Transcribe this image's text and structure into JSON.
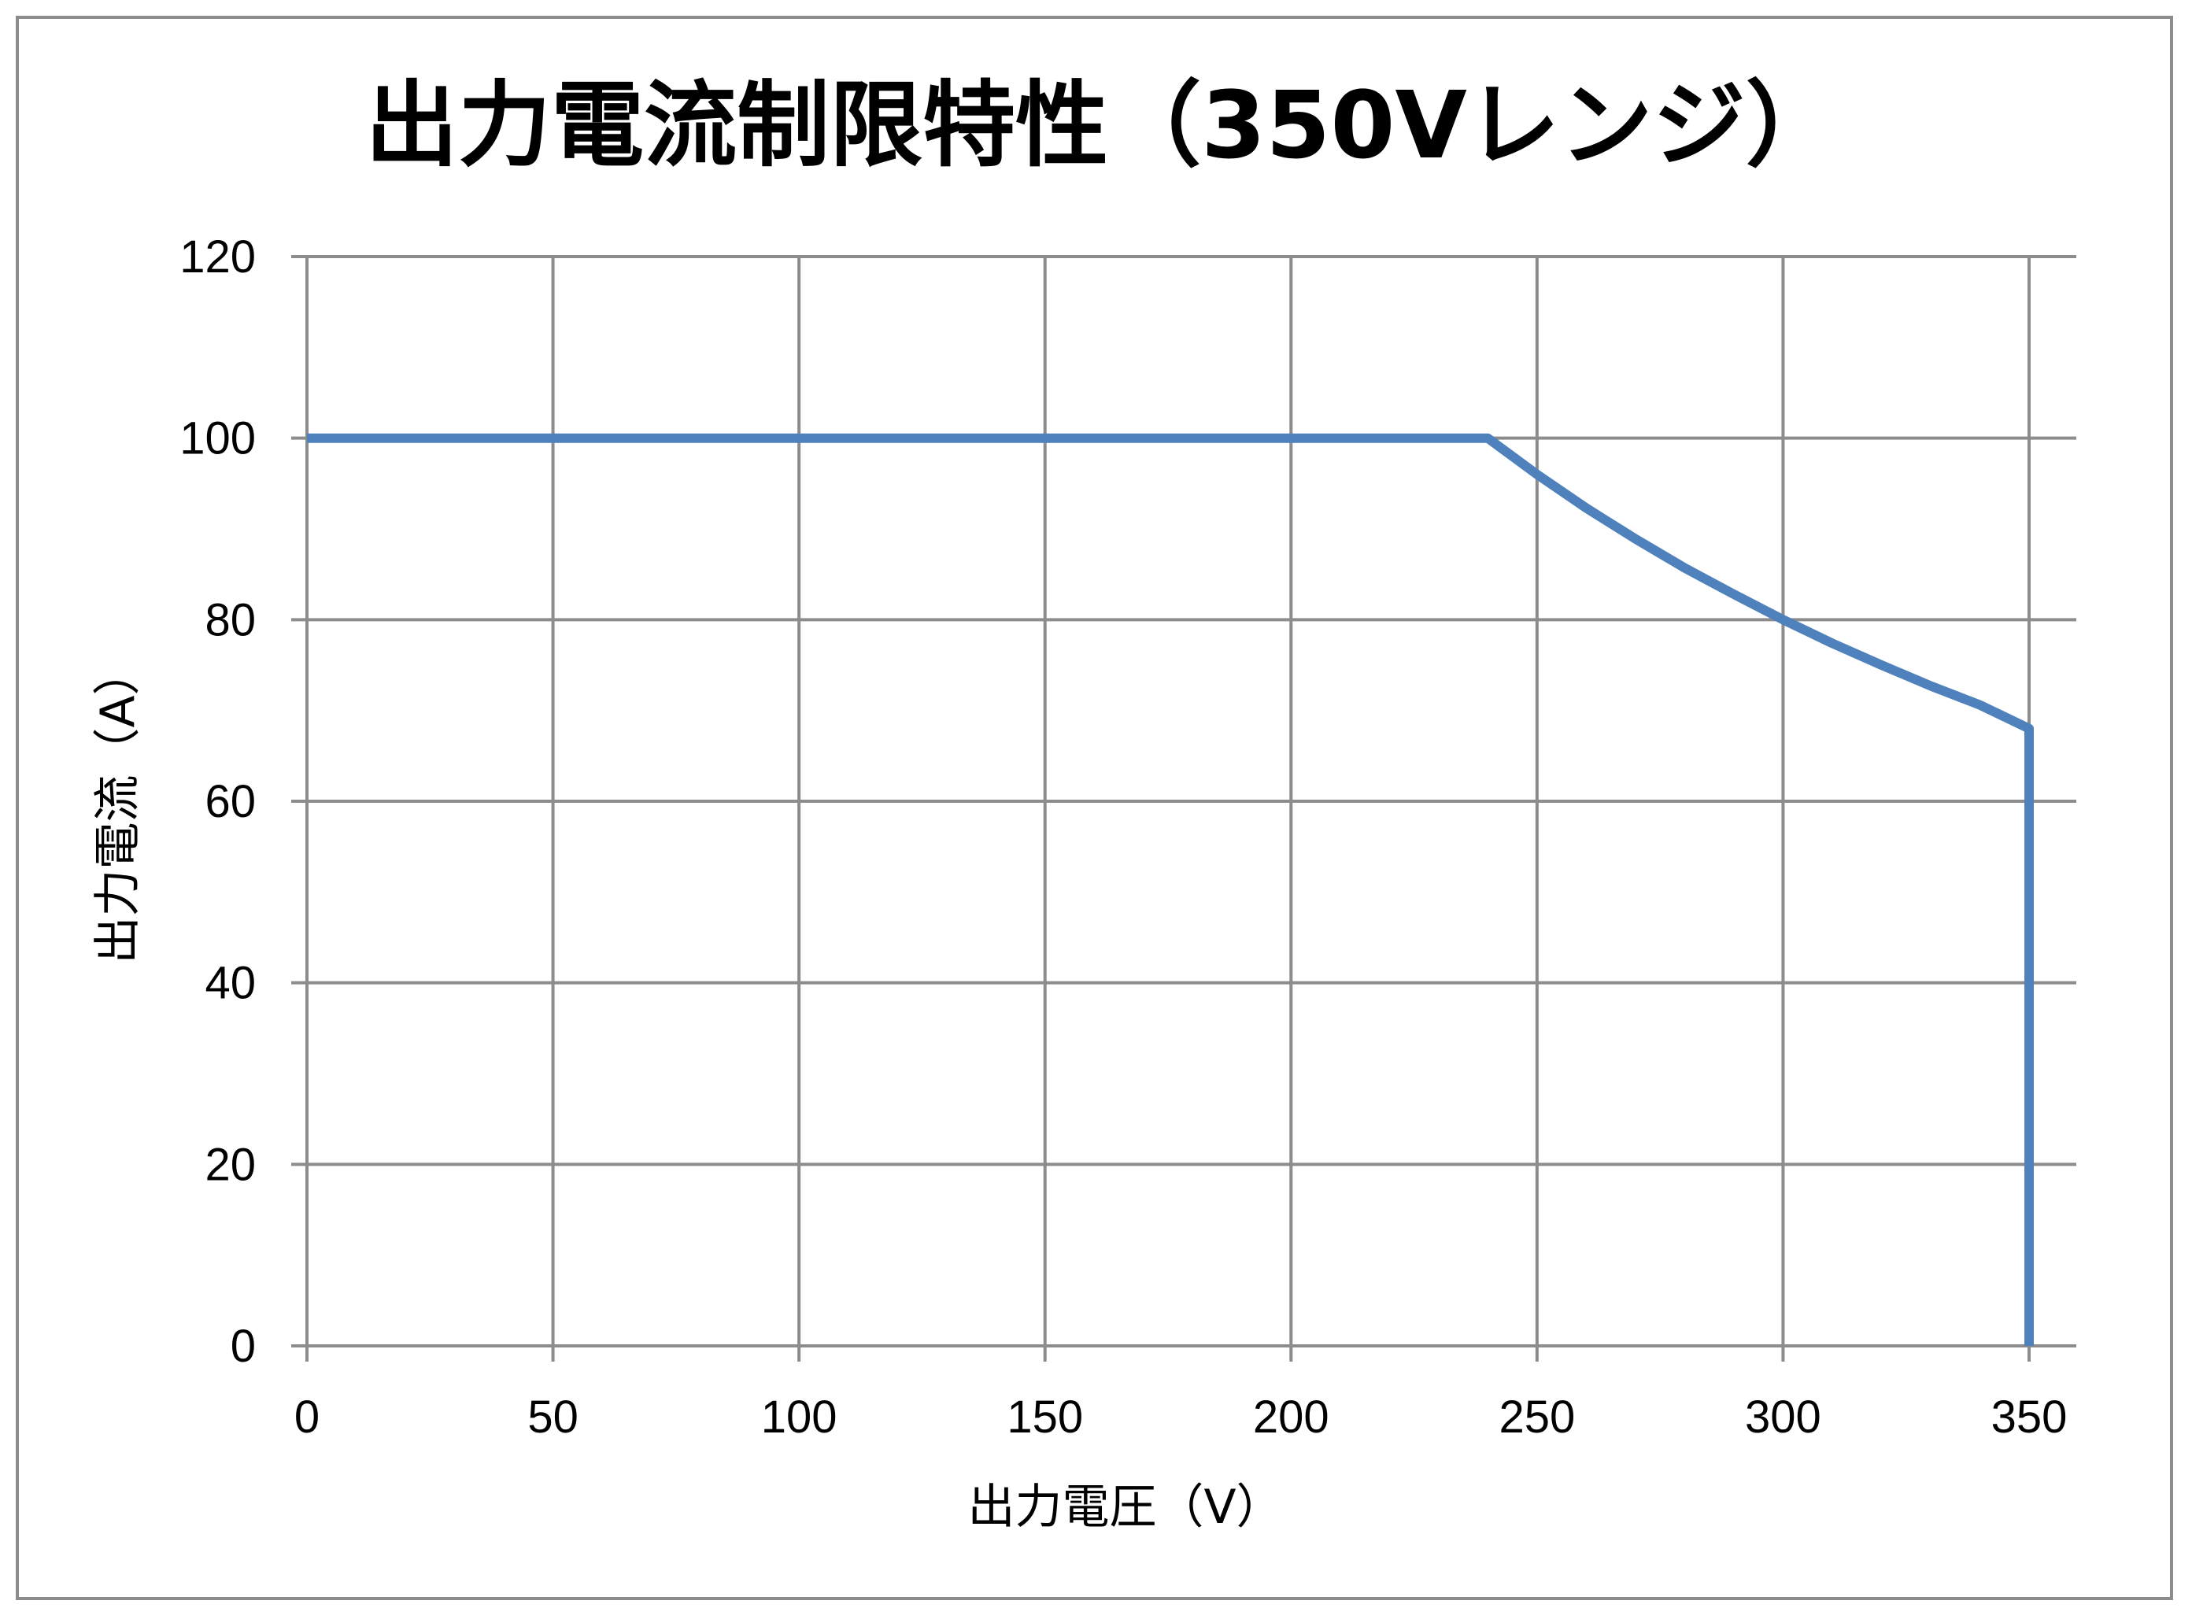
{
  "chart_data": {
    "type": "line",
    "title": "出力電流制限特性（350Vレンジ）",
    "xlabel": "出力電圧（V）",
    "ylabel": "出力電流（A）",
    "xlim": [
      0,
      350
    ],
    "ylim": [
      0,
      120
    ],
    "x_ticks": [
      0,
      50,
      100,
      150,
      200,
      250,
      300,
      350
    ],
    "y_ticks": [
      0,
      20,
      40,
      60,
      80,
      100,
      120
    ],
    "grid": true,
    "legend": "none",
    "series": [
      {
        "color": "#4f81bd",
        "points": [
          [
            0,
            100
          ],
          [
            240,
            100
          ],
          [
            250,
            96
          ],
          [
            260,
            92.3
          ],
          [
            270,
            88.9
          ],
          [
            280,
            85.7
          ],
          [
            290,
            82.8
          ],
          [
            300,
            80
          ],
          [
            310,
            77.4
          ],
          [
            320,
            75
          ],
          [
            330,
            72.7
          ],
          [
            340,
            70.6
          ],
          [
            350,
            68
          ],
          [
            350,
            0
          ]
        ]
      }
    ]
  },
  "colors": {
    "grid": "#8c8c8c",
    "frame": "#8c8c8c",
    "series": "#4f81bd"
  }
}
